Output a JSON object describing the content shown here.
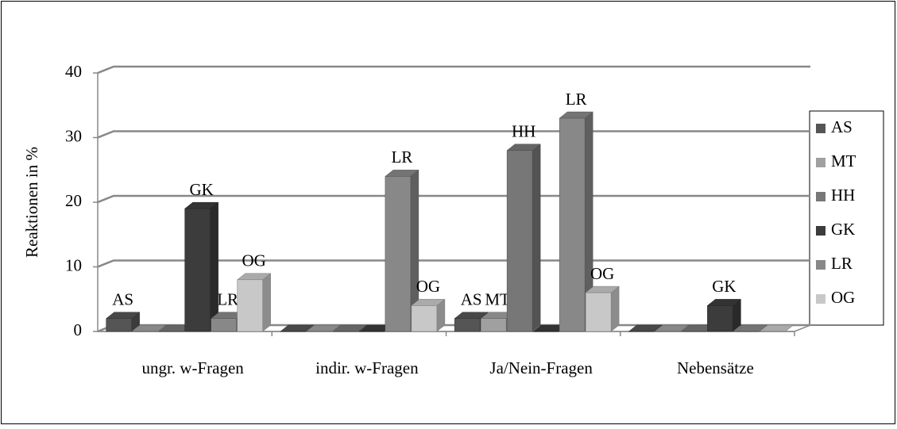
{
  "chart_data": {
    "type": "bar3d",
    "y_label": "Reaktionen in %",
    "categories": [
      "ungr. w-Fragen",
      "indir. w-Fragen",
      "Ja/Nein-Fragen",
      "Nebensätze"
    ],
    "series": [
      {
        "name": "AS",
        "color": "#555555",
        "values": [
          2,
          0,
          2,
          0
        ]
      },
      {
        "name": "MT",
        "color": "#a0a0a0",
        "values": [
          0,
          0,
          2,
          0
        ]
      },
      {
        "name": "HH",
        "color": "#777777",
        "values": [
          0,
          0,
          28,
          0
        ]
      },
      {
        "name": "GK",
        "color": "#3c3c3c",
        "values": [
          19,
          0,
          0,
          4
        ]
      },
      {
        "name": "LR",
        "color": "#888888",
        "values": [
          2,
          24,
          33,
          0
        ]
      },
      {
        "name": "OG",
        "color": "#c8c8c8",
        "values": [
          8,
          4,
          6,
          0
        ]
      }
    ],
    "ylim": [
      0,
      40
    ],
    "yticks": [
      0,
      10,
      20,
      30,
      40
    ],
    "grid": true,
    "legend": "right"
  }
}
